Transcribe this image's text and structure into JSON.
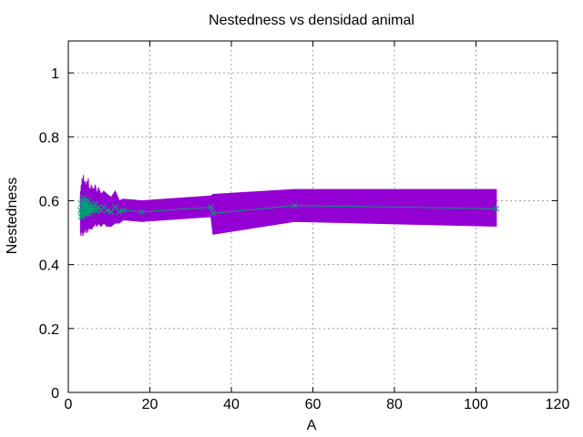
{
  "chart_data": {
    "type": "line",
    "title": "Nestedness vs densidad animal",
    "xlabel": "A",
    "ylabel": "Nestedness",
    "xlim": [
      0,
      120
    ],
    "ylim": [
      0,
      1.1
    ],
    "xticks": [
      0,
      20,
      40,
      60,
      80,
      100,
      120
    ],
    "yticks": [
      0,
      0.2,
      0.4,
      0.6,
      0.8,
      1
    ],
    "ytick_labels": [
      "0",
      "0.2",
      "0.4",
      "0.6",
      "0.8",
      "1"
    ],
    "xtick_labels": [
      "0",
      "20",
      "40",
      "60",
      "80",
      "100",
      "120"
    ],
    "grid": true,
    "legend": "none",
    "colors": {
      "band": "#9400d3",
      "line": "#009e73",
      "grid": "#a0a0a0",
      "axis": "#000000"
    },
    "series": [
      {
        "x": [
          3.0,
          3.1,
          3.2,
          3.3,
          3.4,
          3.5,
          3.6,
          3.7,
          3.8,
          3.9,
          4.0,
          4.1,
          4.2,
          4.3,
          4.4,
          4.5,
          4.6,
          4.7,
          4.8,
          4.9,
          5.0,
          5.2,
          5.4,
          5.6,
          5.8,
          6.0,
          6.3,
          6.6,
          7.0,
          7.4,
          8.0,
          8.7,
          9.5,
          10.5,
          11.5,
          12.5,
          13.5,
          18.0,
          35.0,
          35.5,
          55.5,
          105.0
        ],
        "y": [
          0.57,
          0.55,
          0.59,
          0.56,
          0.6,
          0.58,
          0.55,
          0.61,
          0.57,
          0.56,
          0.59,
          0.58,
          0.6,
          0.56,
          0.58,
          0.57,
          0.59,
          0.56,
          0.58,
          0.6,
          0.57,
          0.58,
          0.56,
          0.59,
          0.57,
          0.58,
          0.57,
          0.59,
          0.57,
          0.58,
          0.57,
          0.58,
          0.57,
          0.565,
          0.58,
          0.565,
          0.57,
          0.565,
          0.58,
          0.56,
          0.585,
          0.575
        ],
        "err_low": [
          0.51,
          0.49,
          0.53,
          0.5,
          0.52,
          0.5,
          0.49,
          0.53,
          0.51,
          0.5,
          0.52,
          0.51,
          0.53,
          0.5,
          0.51,
          0.51,
          0.52,
          0.5,
          0.51,
          0.52,
          0.51,
          0.52,
          0.51,
          0.52,
          0.51,
          0.52,
          0.52,
          0.53,
          0.52,
          0.53,
          0.52,
          0.53,
          0.52,
          0.52,
          0.53,
          0.53,
          0.54,
          0.535,
          0.55,
          0.495,
          0.535,
          0.52
        ],
        "err_high": [
          0.63,
          0.62,
          0.65,
          0.62,
          0.67,
          0.65,
          0.62,
          0.68,
          0.63,
          0.62,
          0.66,
          0.65,
          0.66,
          0.62,
          0.65,
          0.63,
          0.66,
          0.62,
          0.65,
          0.67,
          0.63,
          0.64,
          0.62,
          0.65,
          0.63,
          0.64,
          0.63,
          0.65,
          0.62,
          0.64,
          0.62,
          0.63,
          0.62,
          0.61,
          0.63,
          0.6,
          0.605,
          0.6,
          0.615,
          0.62,
          0.635,
          0.635
        ]
      }
    ]
  }
}
